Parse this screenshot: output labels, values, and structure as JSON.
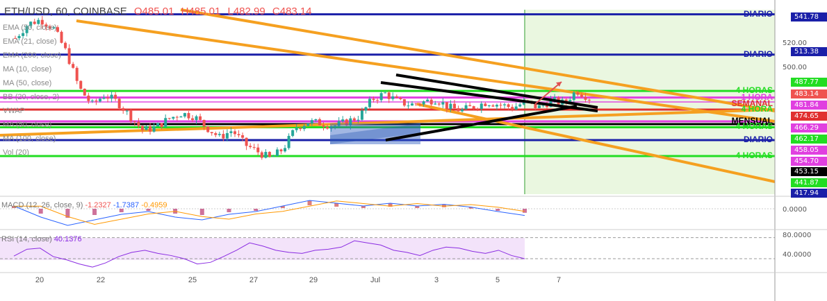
{
  "header": {
    "symbol": "ETH/USD, 60, COINBASE",
    "open": "O485.01",
    "high": "H485.01",
    "low": "L482.99",
    "close": "C483.14"
  },
  "indicators": [
    "EMA (50, close)",
    "EMA (21, close)",
    "EMA (200, close)",
    "MA (10, close)",
    "MA (50, close)",
    "BB (20, close, 2)",
    "VWAP",
    "MA (50, close)",
    "MA (100, close)",
    "Vol (20)"
  ],
  "macd_label": "MACD (12, 26, close, 9)",
  "macd_values": [
    "-1.2327",
    "-1.7387",
    "-0.4959"
  ],
  "rsi_label": "RSI (14, close)",
  "rsi_value": "40.1376",
  "colors": {
    "up": "#26a69a",
    "down": "#ef5350",
    "diario": "#1a1fa8",
    "cuatro_horas": "#22dd22",
    "semanal": "#e03030",
    "una_hora": "#e040e0",
    "mensual": "#000000",
    "channel": "#f5a020",
    "highlight": "#eaf7e0",
    "rsi_band": "#f3e3fa",
    "rsi_line": "#8a2be2"
  },
  "level_labels": [
    {
      "text": "DIARIO",
      "price": 541.78,
      "color": "#1a1fa8"
    },
    {
      "text": "DIARIO",
      "price": 513.38,
      "color": "#1a1fa8"
    },
    {
      "text": "4 HORAS",
      "price": 487.77,
      "color": "#22dd22"
    },
    {
      "text": "1 HORA",
      "price": 483.14,
      "color": "#e040e0"
    },
    {
      "text": "SEMANAL",
      "price": 478.5,
      "color": "#e03030"
    },
    {
      "text": "4 HORA",
      "price": 474.65,
      "color": "#22dd22"
    },
    {
      "text": "MENSUAL",
      "price": 466.29,
      "color": "#000000"
    },
    {
      "text": "4 HORAS",
      "price": 462.17,
      "color": "#22dd22"
    },
    {
      "text": "DIARIO",
      "price": 453.15,
      "color": "#1a1fa8"
    },
    {
      "text": "4 HORAS",
      "price": 441.87,
      "color": "#22dd22"
    }
  ],
  "price_axis": [
    "520.00",
    "500.00"
  ],
  "price_labels": [
    {
      "text": "541.78",
      "bg": "#1a1fa8"
    },
    {
      "text": "513.38",
      "bg": "#1a1fa8"
    },
    {
      "text": "487.77",
      "bg": "#22dd22"
    },
    {
      "text": "483.14",
      "bg": "#ef5350"
    },
    {
      "text": "481.84",
      "bg": "#e040e0"
    },
    {
      "text": "474.65",
      "bg": "#e03030"
    },
    {
      "text": "466.29",
      "bg": "#e040e0"
    },
    {
      "text": "462.17",
      "bg": "#22dd22"
    },
    {
      "text": "458.05",
      "bg": "#e040e0"
    },
    {
      "text": "454.70",
      "bg": "#e040e0"
    },
    {
      "text": "453.15",
      "bg": "#000000"
    },
    {
      "text": "441.87",
      "bg": "#22dd22"
    },
    {
      "text": "417.94",
      "bg": "#1a1fa8"
    }
  ],
  "macd_axis": "0.0000",
  "rsi_axis": [
    "80.0000",
    "40.0000"
  ],
  "chart_data": {
    "type": "candlestick",
    "x_ticks": [
      "20",
      "22",
      "25",
      "27",
      "29",
      "Jul",
      "3",
      "5",
      "7"
    ],
    "price_range": [
      415,
      545
    ],
    "horizontal_levels": [
      541.78,
      513.38,
      487.77,
      483.14,
      474.65,
      466.29,
      462.17,
      453.15,
      441.87
    ],
    "close_path": [
      525,
      535,
      538,
      532,
      515,
      490,
      478,
      485,
      480,
      470,
      460,
      462,
      468,
      472,
      470,
      462,
      455,
      460,
      450,
      445,
      440,
      447,
      462,
      466,
      465,
      463,
      466,
      470,
      482,
      486,
      480,
      478,
      480,
      482,
      476,
      474,
      477,
      480,
      478,
      476,
      480,
      476,
      481,
      479,
      488,
      483
    ],
    "macd": [
      0.5,
      -1.5,
      -3,
      -2,
      -1,
      -0.5,
      -1.5,
      -2,
      -1,
      -0.5,
      0.5,
      1.5,
      1,
      0.5,
      1,
      0.5,
      0.8,
      0.3,
      -0.5,
      -1.2
    ],
    "rsi": [
      45,
      58,
      60,
      44,
      38,
      30,
      24,
      32,
      44,
      52,
      56,
      50,
      46,
      40,
      30,
      33,
      44,
      56,
      70,
      64,
      56,
      52,
      50,
      56,
      58,
      62,
      74,
      70,
      66,
      56,
      52,
      46,
      56,
      62,
      60,
      54,
      50,
      56,
      46,
      40
    ]
  }
}
